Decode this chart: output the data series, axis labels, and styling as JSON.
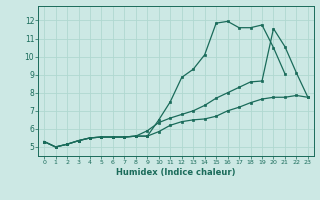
{
  "xlabel": "Humidex (Indice chaleur)",
  "bg_color": "#cce8e4",
  "line_color": "#1a6b5a",
  "grid_color": "#b0d8d0",
  "xlim": [
    -0.5,
    23.5
  ],
  "ylim": [
    4.5,
    12.8
  ],
  "xticks": [
    0,
    1,
    2,
    3,
    4,
    5,
    6,
    7,
    8,
    9,
    10,
    11,
    12,
    13,
    14,
    15,
    16,
    17,
    18,
    19,
    20,
    21,
    22,
    23
  ],
  "yticks": [
    5,
    6,
    7,
    8,
    9,
    10,
    11,
    12
  ],
  "line1_x": [
    0,
    1,
    2,
    3,
    4,
    5,
    6,
    7,
    8,
    9,
    10,
    11,
    12,
    13,
    14,
    15,
    16,
    17,
    18,
    19,
    20,
    21,
    22,
    23
  ],
  "line1_y": [
    5.3,
    5.0,
    5.15,
    5.35,
    5.5,
    5.55,
    5.55,
    5.55,
    5.6,
    5.6,
    6.5,
    7.5,
    8.85,
    9.3,
    10.1,
    11.85,
    11.95,
    11.6,
    11.6,
    11.75,
    10.5,
    9.05,
    null,
    null
  ],
  "line2_x": [
    0,
    1,
    2,
    3,
    4,
    5,
    6,
    7,
    8,
    9,
    10,
    11,
    12,
    13,
    14,
    15,
    16,
    17,
    18,
    19,
    20,
    21,
    22,
    23
  ],
  "line2_y": [
    5.3,
    5.0,
    5.15,
    5.35,
    5.5,
    5.55,
    5.55,
    5.55,
    5.6,
    5.6,
    5.85,
    6.2,
    6.4,
    6.5,
    6.55,
    6.7,
    7.0,
    7.2,
    7.45,
    7.65,
    7.75,
    7.75,
    7.85,
    7.75
  ],
  "line3_x": [
    0,
    1,
    2,
    3,
    4,
    5,
    6,
    7,
    8,
    9,
    10,
    11,
    12,
    13,
    14,
    15,
    16,
    17,
    18,
    19,
    20,
    21,
    22,
    23
  ],
  "line3_y": [
    5.3,
    5.0,
    5.15,
    5.35,
    5.5,
    5.55,
    5.55,
    5.55,
    5.6,
    5.9,
    6.35,
    6.6,
    6.8,
    7.0,
    7.3,
    7.7,
    8.0,
    8.3,
    8.6,
    8.65,
    11.55,
    10.55,
    9.1,
    7.75
  ]
}
